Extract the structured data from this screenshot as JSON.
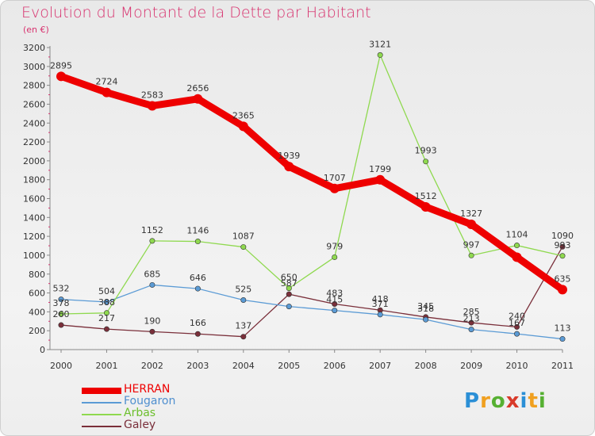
{
  "title": "Evolution du Montant de la Dette par Habitant",
  "subtitle": "(en €)",
  "logo_text": "Proxiti",
  "chart_data": {
    "type": "line",
    "x": [
      "2000",
      "2001",
      "2002",
      "2003",
      "2004",
      "2005",
      "2006",
      "2007",
      "2008",
      "2009",
      "2010",
      "2011"
    ],
    "ylim": [
      0,
      3200
    ],
    "yticks": [
      0,
      200,
      400,
      600,
      800,
      1000,
      1200,
      1400,
      1600,
      1800,
      2000,
      2200,
      2400,
      2600,
      2800,
      3000,
      3200
    ],
    "grid": false,
    "legend_position": "bottom-left",
    "series": [
      {
        "name": "HERRAN",
        "color": "#ee0000",
        "values": [
          2895,
          2724,
          2583,
          2656,
          2365,
          1939,
          1707,
          1799,
          1512,
          1327,
          979,
          635
        ],
        "labels": [
          "2895",
          "2724",
          "2583",
          "2656",
          "2365",
          "1939",
          "1707",
          "1799",
          "1512",
          "1327",
          "",
          "635"
        ]
      },
      {
        "name": "Fougaron",
        "color": "#5b9bd5",
        "values": [
          532,
          504,
          685,
          646,
          525,
          457,
          415,
          371,
          318,
          213,
          167,
          113
        ],
        "labels": [
          "532",
          "504",
          "685",
          "646",
          "525",
          "",
          "415",
          "371",
          "318",
          "213",
          "167",
          "113"
        ]
      },
      {
        "name": "Arbas",
        "color": "#8fd94f",
        "values": [
          378,
          388,
          1152,
          1146,
          1087,
          650,
          979,
          3121,
          1993,
          997,
          1104,
          993
        ],
        "labels": [
          "378",
          "388",
          "1152",
          "1146",
          "1087",
          "650",
          "979",
          "3121",
          "1993",
          "997",
          "1104",
          "993"
        ]
      },
      {
        "name": "Galey",
        "color": "#7a2f3a",
        "values": [
          260,
          217,
          190,
          166,
          137,
          587,
          483,
          418,
          345,
          285,
          240,
          1090
        ],
        "labels": [
          "260",
          "217",
          "190",
          "166",
          "137",
          "587",
          "483",
          "418",
          "345",
          "285",
          "240",
          "1090"
        ]
      }
    ]
  }
}
